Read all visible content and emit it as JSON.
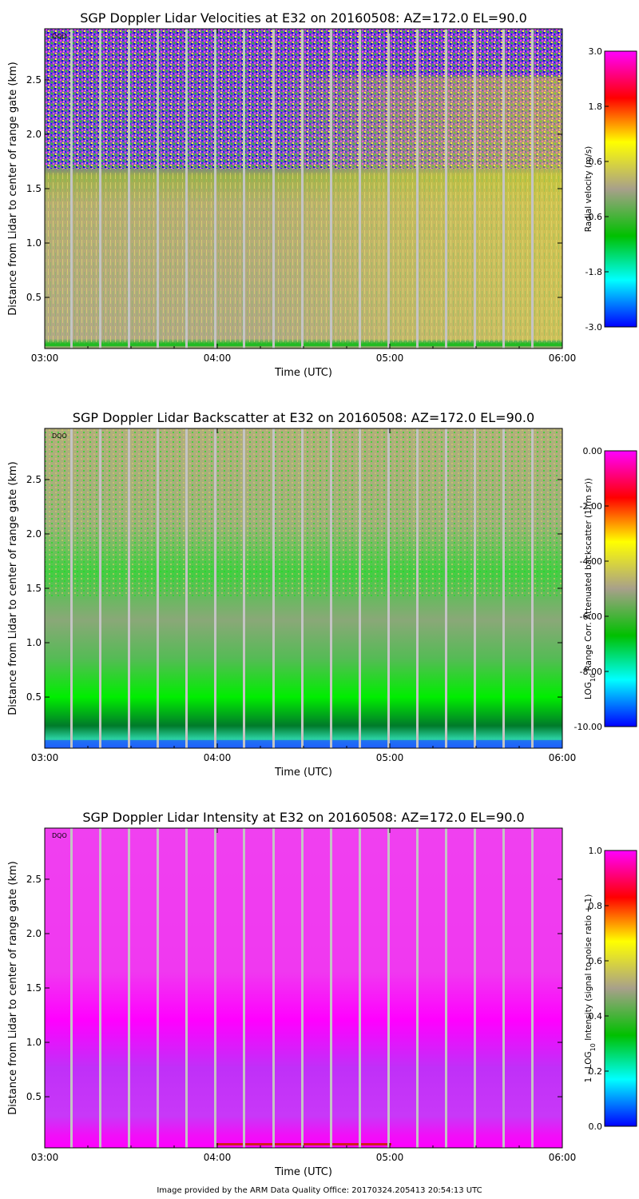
{
  "footer": "Image provided by the ARM Data Quality Office: 20170324.205413 20:54:13 UTC",
  "chart_data": [
    {
      "type": "heatmap",
      "title": "SGP Doppler Lidar Velocities at E32 on 20160508: AZ=172.0 EL=90.0",
      "xlabel": "Time (UTC)",
      "ylabel": "Distance from Lidar to center of range gate (km)",
      "x_ticks": [
        "03:00",
        "04:00",
        "05:00",
        "06:00"
      ],
      "y_ticks": [
        "0.5",
        "1.0",
        "1.5",
        "2.0",
        "2.5"
      ],
      "y_range": [
        0.03,
        2.97
      ],
      "corner_label": "DQO",
      "colorbar": {
        "label": "Radial velocity (m/s)",
        "ticks": [
          "-3.0",
          "-1.8",
          "-0.6",
          "0.6",
          "1.8",
          "3.0"
        ],
        "range": [
          -3.0,
          3.0
        ],
        "colors": [
          "#0000ff",
          "#00ffff",
          "#00c000",
          "#a8a08a",
          "#ffff00",
          "#ff0000",
          "#ff00ff"
        ]
      },
      "field": "velocity"
    },
    {
      "type": "heatmap",
      "title": "SGP Doppler Lidar Backscatter at E32 on 20160508: AZ=172.0 EL=90.0",
      "xlabel": "Time (UTC)",
      "ylabel": "Distance from Lidar to center of range gate (km)",
      "x_ticks": [
        "03:00",
        "04:00",
        "05:00",
        "06:00"
      ],
      "y_ticks": [
        "0.5",
        "1.0",
        "1.5",
        "2.0",
        "2.5"
      ],
      "y_range": [
        0.03,
        2.97
      ],
      "corner_label": "DQO",
      "colorbar": {
        "label_prefix": "LOG",
        "label_sub": "10",
        "label_rest": " Range Corr. Attenuated backscatter (1/(m sr))",
        "ticks": [
          "-10.00",
          "-8.00",
          "-6.00",
          "-4.00",
          "-2.00",
          "0.00"
        ],
        "range": [
          -10.0,
          0.0
        ],
        "colors": [
          "#0000ff",
          "#00ffff",
          "#00c000",
          "#a8a08a",
          "#ffff00",
          "#ff0000",
          "#ff00ff"
        ]
      },
      "field": "backscatter"
    },
    {
      "type": "heatmap",
      "title": "SGP Doppler Lidar Intensity at E32 on 20160508: AZ=172.0 EL=90.0",
      "xlabel": "Time (UTC)",
      "ylabel": "Distance from Lidar to center of range gate (km)",
      "x_ticks": [
        "03:00",
        "04:00",
        "05:00",
        "06:00"
      ],
      "y_ticks": [
        "0.5",
        "1.0",
        "1.5",
        "2.0",
        "2.5"
      ],
      "y_range": [
        0.03,
        2.97
      ],
      "corner_label": "DQO",
      "colorbar": {
        "label_prefix": "1 - LOG",
        "label_sub": "10",
        "label_rest": " Intensity (signal to noise ratio + 1)",
        "ticks": [
          "0.0",
          "0.2",
          "0.4",
          "0.6",
          "0.8",
          "1.0"
        ],
        "range": [
          0.0,
          1.0
        ],
        "colors": [
          "#0000ff",
          "#00ffff",
          "#00c000",
          "#a8a08a",
          "#ffff00",
          "#ff0000",
          "#ff00ff"
        ]
      },
      "field": "intensity"
    }
  ]
}
